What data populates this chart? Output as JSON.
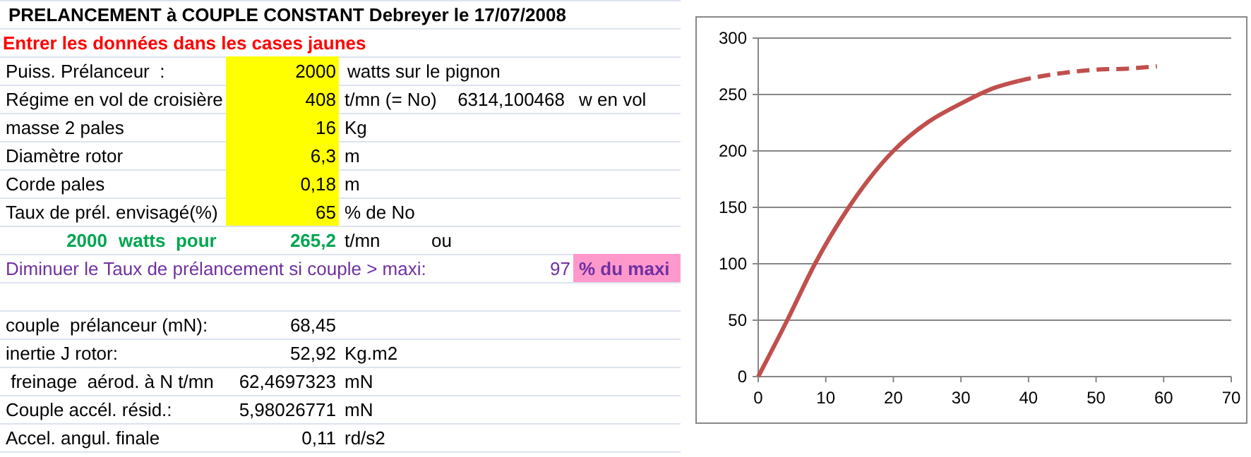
{
  "chart_data": [
    {
      "type": "other",
      "title": "PRELANCEMENT à COUPLE CONSTANT   Debreyer le 17/07/2008",
      "subtitle": "Entrer les données dans les cases jaunes",
      "annotations": [
        "Puiss. Prélanceur  :",
        "2000",
        "watts sur le pignon",
        "Régime en vol de croisière",
        "408",
        "t/mn (= No)",
        "6314,100468",
        "w en vol",
        "masse 2 pales",
        "16",
        "Kg",
        "Diamètre rotor",
        "6,3",
        "m",
        "Corde pales",
        "0,18",
        "m",
        "Taux de prél. envisagé(%)",
        "65",
        "% de No",
        "2000",
        "watts  pour",
        "265,2",
        "t/mn",
        "ou",
        "Diminuer le Taux de prélancement si couple > maxi:",
        "97",
        "% du maxi",
        "couple  prélanceur (mN):",
        "68,45",
        "inertie J rotor:",
        "52,92",
        "Kg.m2",
        " freinage  aérod. à N t/mn",
        "62,4697323",
        "mN",
        "Couple accél. résid.:",
        "5,98026771",
        "mN",
        "Accel. angul. finale",
        "0,11",
        "rd/s2"
      ]
    },
    {
      "type": "line",
      "xlim": [
        0,
        70
      ],
      "xticks": [
        0,
        10,
        20,
        30,
        40,
        50,
        60,
        70
      ],
      "ylim": [
        0,
        300
      ],
      "yticks": [
        0,
        50,
        100,
        150,
        200,
        250,
        300
      ],
      "grid": "y",
      "marker": "none",
      "series": [
        {
          "color": "#c0504d",
          "line_style": "solid",
          "x": [
            0,
            4.3,
            8.4,
            13.4,
            20,
            25,
            30,
            35,
            38.5
          ],
          "values": [
            0,
            50,
            100,
            150,
            200,
            225,
            242,
            256,
            262
          ]
        },
        {
          "color": "#c0504d",
          "line_style": "dashed",
          "x": [
            38.5,
            40,
            45,
            50,
            55,
            59
          ],
          "values": [
            262,
            264,
            269,
            272,
            273,
            275
          ]
        }
      ]
    }
  ]
}
